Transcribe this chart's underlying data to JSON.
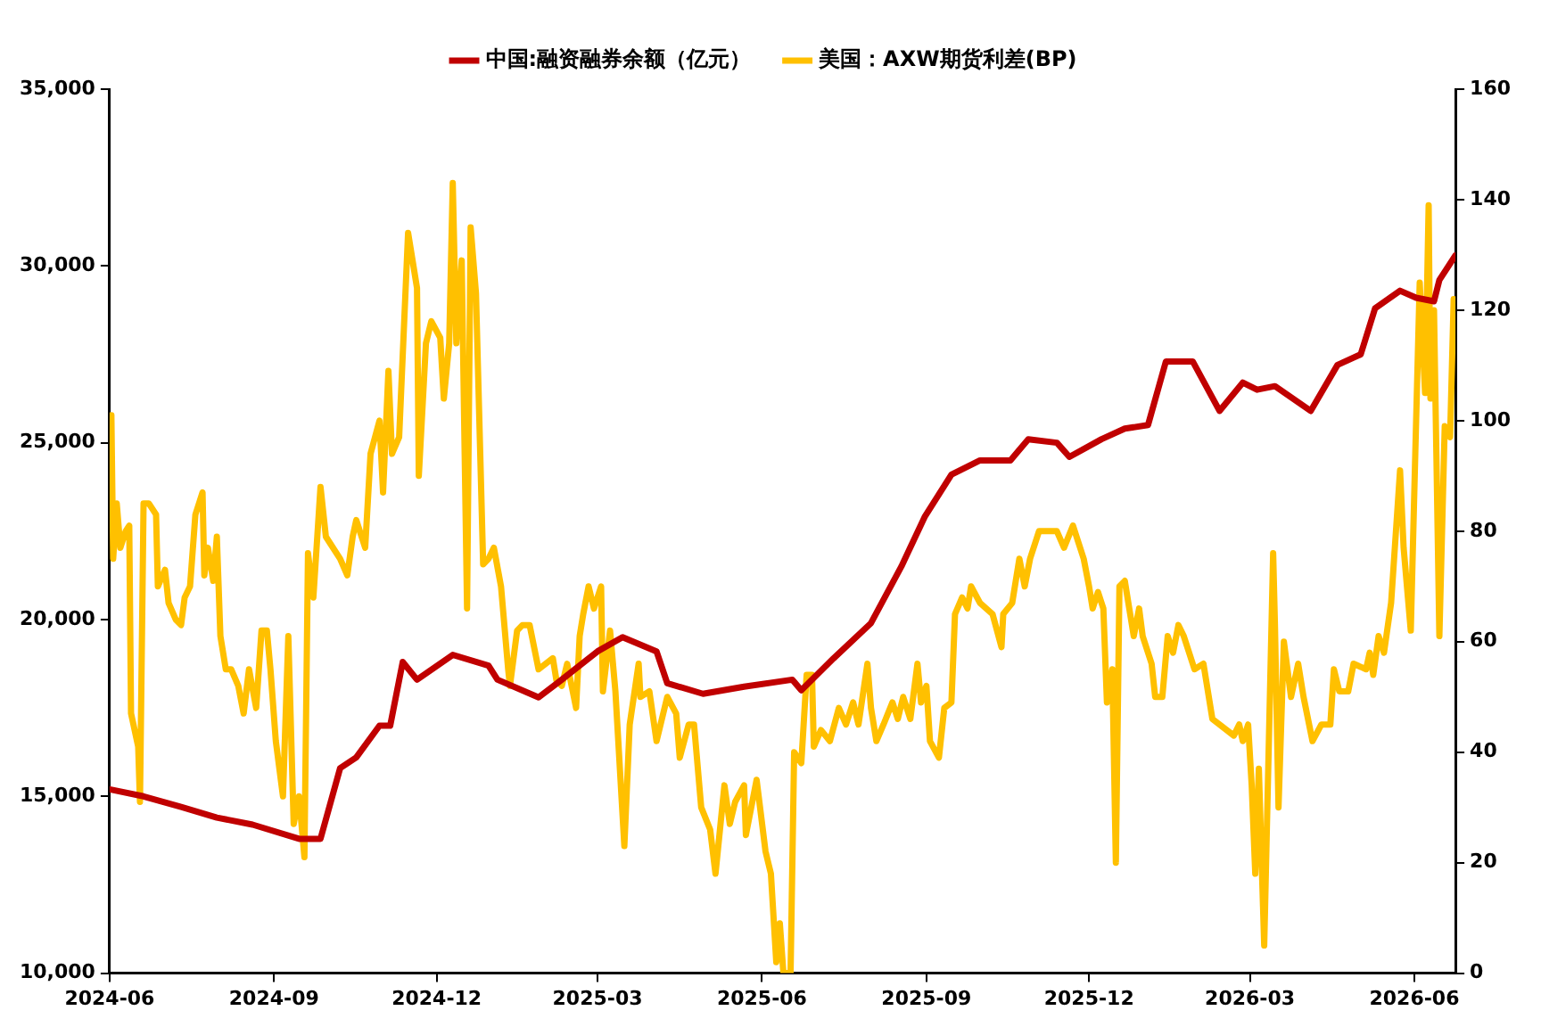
{
  "chart_data": {
    "type": "line",
    "legend": "top",
    "grid": false,
    "marker": "none",
    "line_style": "solid",
    "xlim": [
      "2024-06-01",
      "2026-06-24"
    ],
    "xticks": [
      "2024-06",
      "2024-09",
      "2024-12",
      "2025-03",
      "2025-06",
      "2025-09",
      "2025-12",
      "2026-03",
      "2026-06"
    ],
    "ylim": [
      10000,
      35000
    ],
    "yticks": [
      {
        "value": 10000,
        "label": "10,000"
      },
      {
        "value": 15000,
        "label": "15,000"
      },
      {
        "value": 20000,
        "label": "20,000"
      },
      {
        "value": 25000,
        "label": "25,000"
      },
      {
        "value": 30000,
        "label": "30,000"
      },
      {
        "value": 35000,
        "label": "35,000"
      }
    ],
    "y2lim": [
      0,
      160
    ],
    "y2ticks": [
      0,
      20,
      40,
      60,
      80,
      100,
      120,
      140,
      160
    ],
    "series": [
      {
        "name": "中国:融资融券余额（亿元）",
        "color": "#c00000",
        "x": [
          "2024-06-01",
          "2024-06-20",
          "2024-07-11",
          "2024-07-31",
          "2024-08-20",
          "2024-09-15",
          "2024-09-27",
          "2024-10-08",
          "2024-10-17",
          "2024-10-30",
          "2024-11-05",
          "2024-11-12",
          "2024-11-20",
          "2024-12-10",
          "2024-12-30",
          "2025-01-04",
          "2025-01-27",
          "2025-02-09",
          "2025-03-01",
          "2025-03-15",
          "2025-04-03",
          "2025-04-09",
          "2025-04-29",
          "2025-05-22",
          "2025-06-18",
          "2025-06-23",
          "2025-07-11",
          "2025-08-01",
          "2025-08-18",
          "2025-08-31",
          "2025-09-15",
          "2025-10-01",
          "2025-10-18",
          "2025-10-28",
          "2025-11-13",
          "2025-11-20",
          "2025-12-08",
          "2025-12-21",
          "2026-01-03",
          "2026-01-13",
          "2026-01-28",
          "2026-02-12",
          "2026-02-25",
          "2026-03-05",
          "2026-03-15",
          "2026-04-04",
          "2026-04-19",
          "2026-05-02",
          "2026-05-10",
          "2026-05-24",
          "2026-06-02",
          "2026-06-12",
          "2026-06-15",
          "2026-06-24"
        ],
        "values": [
          15200,
          15000,
          14700,
          14400,
          14200,
          13800,
          13800,
          15800,
          16100,
          17000,
          17000,
          18800,
          18300,
          19000,
          18700,
          18300,
          17800,
          18300,
          19100,
          19500,
          19100,
          18200,
          17900,
          18100,
          18300,
          18000,
          18900,
          19900,
          21500,
          22900,
          24100,
          24500,
          24500,
          25100,
          25000,
          24600,
          25100,
          25400,
          25500,
          27300,
          27300,
          25900,
          26700,
          26500,
          26600,
          25900,
          27200,
          27500,
          28800,
          29300,
          29100,
          29000,
          29600,
          30300
        ]
      },
      {
        "name": "美国：AXW期货利差(BP)",
        "color": "#ffc000",
        "axis": "y2",
        "x": [
          "2024-06-02",
          "2024-06-03",
          "2024-06-05",
          "2024-06-07",
          "2024-06-10",
          "2024-06-12",
          "2024-06-13",
          "2024-06-17",
          "2024-06-18",
          "2024-06-20",
          "2024-06-23",
          "2024-06-27",
          "2024-06-28",
          "2024-07-02",
          "2024-07-04",
          "2024-07-08",
          "2024-07-11",
          "2024-07-13",
          "2024-07-16",
          "2024-07-19",
          "2024-07-23",
          "2024-07-24",
          "2024-07-26",
          "2024-07-29",
          "2024-07-31",
          "2024-08-02",
          "2024-08-05",
          "2024-08-08",
          "2024-08-12",
          "2024-08-15",
          "2024-08-18",
          "2024-08-22",
          "2024-08-25",
          "2024-08-28",
          "2024-08-30",
          "2024-09-02",
          "2024-09-06",
          "2024-09-09",
          "2024-09-12",
          "2024-09-15",
          "2024-09-18",
          "2024-09-20",
          "2024-09-23",
          "2024-09-27",
          "2024-09-30",
          "2024-10-08",
          "2024-10-12",
          "2024-10-15",
          "2024-10-17",
          "2024-10-22",
          "2024-10-25",
          "2024-10-30",
          "2024-11-01",
          "2024-11-04",
          "2024-11-06",
          "2024-11-10",
          "2024-11-15",
          "2024-11-20",
          "2024-11-21",
          "2024-11-25",
          "2024-11-28",
          "2024-12-03",
          "2024-12-05",
          "2024-12-08",
          "2024-12-10",
          "2024-12-12",
          "2024-12-15",
          "2024-12-18",
          "2024-12-20",
          "2024-12-23",
          "2024-12-27",
          "2024-12-30",
          "2025-01-02",
          "2025-01-06",
          "2025-01-10",
          "2025-01-11",
          "2025-01-15",
          "2025-01-18",
          "2025-01-22",
          "2025-01-27",
          "2025-02-04",
          "2025-02-06",
          "2025-02-09",
          "2025-02-12",
          "2025-02-17",
          "2025-02-19",
          "2025-02-21",
          "2025-02-24",
          "2025-02-27",
          "2025-03-03",
          "2025-03-04",
          "2025-03-08",
          "2025-03-11",
          "2025-03-16",
          "2025-03-19",
          "2025-03-24",
          "2025-03-25",
          "2025-03-30",
          "2025-04-03",
          "2025-04-09",
          "2025-04-14",
          "2025-04-16",
          "2025-04-21",
          "2025-04-24",
          "2025-04-28",
          "2025-05-03",
          "2025-05-06",
          "2025-05-11",
          "2025-05-14",
          "2025-05-17",
          "2025-05-22",
          "2025-05-23",
          "2025-05-29",
          "2025-06-03",
          "2025-06-06",
          "2025-06-09",
          "2025-06-11",
          "2025-06-13",
          "2025-06-17",
          "2025-06-19",
          "2025-06-23",
          "2025-06-26",
          "2025-06-29",
          "2025-06-30",
          "2025-07-04",
          "2025-07-09",
          "2025-07-14",
          "2025-07-18",
          "2025-07-22",
          "2025-07-25",
          "2025-07-30",
          "2025-08-01",
          "2025-08-04",
          "2025-08-08",
          "2025-08-13",
          "2025-08-16",
          "2025-08-19",
          "2025-08-23",
          "2025-08-27",
          "2025-08-29",
          "2025-09-01",
          "2025-09-03",
          "2025-09-08",
          "2025-09-11",
          "2025-09-15",
          "2025-09-17",
          "2025-09-21",
          "2025-09-24",
          "2025-09-26",
          "2025-10-01",
          "2025-10-08",
          "2025-10-13",
          "2025-10-14",
          "2025-10-19",
          "2025-10-23",
          "2025-10-26",
          "2025-10-29",
          "2025-11-03",
          "2025-11-13",
          "2025-11-17",
          "2025-11-22",
          "2025-11-28",
          "2025-12-01",
          "2025-12-03",
          "2025-12-06",
          "2025-12-09",
          "2025-12-11",
          "2025-12-14",
          "2025-12-16",
          "2025-12-18",
          "2025-12-21",
          "2025-12-24",
          "2025-12-26",
          "2025-12-29",
          "2025-12-31",
          "2026-01-05",
          "2026-01-07",
          "2026-01-11",
          "2026-01-14",
          "2026-01-17",
          "2026-01-20",
          "2026-01-23",
          "2026-01-29",
          "2026-02-03",
          "2026-02-08",
          "2026-02-20",
          "2026-02-23",
          "2026-02-25",
          "2026-02-28",
          "2026-03-02",
          "2026-03-04",
          "2026-03-06",
          "2026-03-09",
          "2026-03-14",
          "2026-03-15",
          "2026-03-17",
          "2026-03-20",
          "2026-03-24",
          "2026-03-28",
          "2026-03-31",
          "2026-04-05",
          "2026-04-10",
          "2026-04-15",
          "2026-04-17",
          "2026-04-20",
          "2026-04-25",
          "2026-04-28",
          "2026-05-05",
          "2026-05-07",
          "2026-05-09",
          "2026-05-12",
          "2026-05-15",
          "2026-05-19",
          "2026-05-24",
          "2026-05-26",
          "2026-05-30",
          "2026-06-02",
          "2026-06-04",
          "2026-06-07",
          "2026-06-09",
          "2026-06-10",
          "2026-06-12",
          "2026-06-15",
          "2026-06-18",
          "2026-06-21",
          "2026-06-23"
        ],
        "values": [
          101,
          75,
          85,
          77,
          80,
          81,
          47,
          41,
          31,
          85,
          85,
          83,
          70,
          73,
          67,
          64,
          63,
          68,
          70,
          83,
          87,
          72,
          77,
          71,
          79,
          61,
          55,
          55,
          52,
          47,
          55,
          48,
          62,
          62,
          55,
          42,
          32,
          61,
          27,
          32,
          21,
          76,
          68,
          88,
          79,
          75,
          72,
          79,
          82,
          77,
          94,
          100,
          87,
          109,
          94,
          97,
          134,
          124,
          90,
          114,
          118,
          115,
          104,
          114,
          143,
          114,
          129,
          66,
          135,
          123,
          74,
          75,
          77,
          70,
          55,
          52,
          62,
          63,
          63,
          55,
          57,
          53,
          52,
          56,
          48,
          61,
          65,
          70,
          66,
          70,
          51,
          62,
          51,
          23,
          45,
          56,
          50,
          51,
          42,
          50,
          47,
          39,
          45,
          45,
          30,
          26,
          18,
          34,
          27,
          31,
          34,
          25,
          35,
          22,
          18,
          2,
          9,
          0,
          0,
          40,
          38,
          54,
          54,
          41,
          44,
          42,
          48,
          45,
          49,
          45,
          56,
          48,
          42,
          45,
          49,
          46,
          50,
          46,
          56,
          49,
          52,
          42,
          39,
          48,
          49,
          65,
          68,
          66,
          70,
          67,
          65,
          59,
          65,
          67,
          75,
          70,
          75,
          80,
          80,
          77,
          81,
          75,
          70,
          66,
          69,
          66,
          49,
          55,
          20,
          70,
          71,
          65,
          61,
          66,
          61,
          56,
          50,
          50,
          61,
          58,
          63,
          61,
          55,
          56,
          46,
          43,
          45,
          42,
          45,
          34,
          18,
          37,
          5,
          76,
          63,
          30,
          60,
          50,
          56,
          50,
          42,
          45,
          45,
          55,
          51,
          51,
          56,
          55,
          58,
          54,
          61,
          58,
          67,
          91,
          77,
          62,
          100,
          125,
          105,
          139,
          104,
          120,
          61,
          99,
          97,
          122
        ]
      }
    ]
  }
}
